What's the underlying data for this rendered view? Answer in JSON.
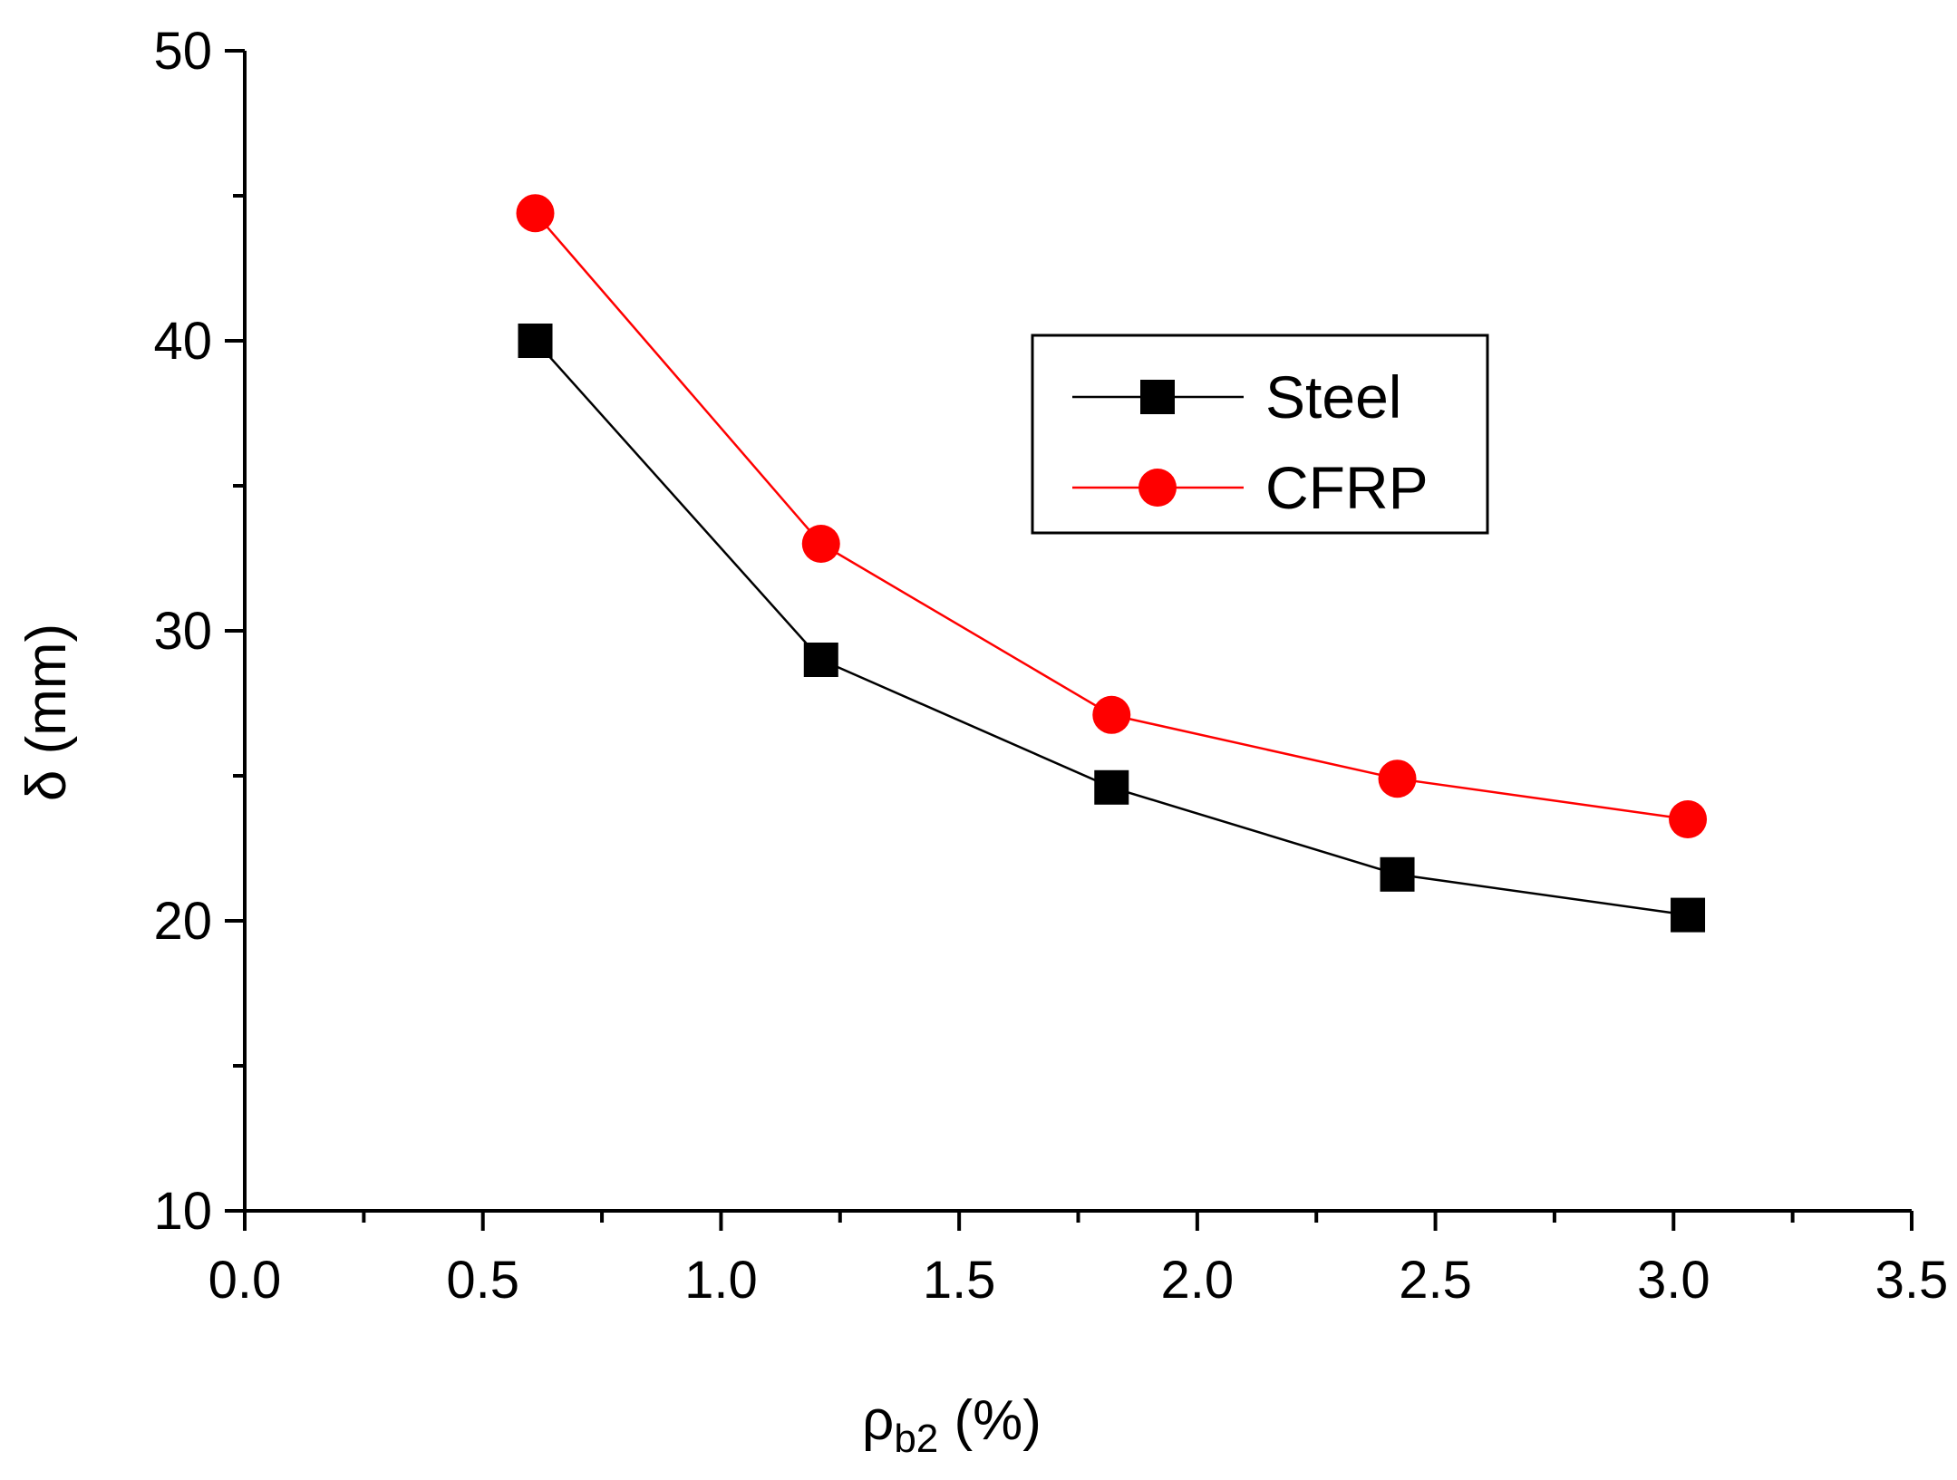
{
  "chart_data": {
    "type": "line",
    "title": "",
    "xlabel": "ρ",
    "xlabel_sub": "b2",
    "xlabel_unit": " (%)",
    "ylabel": "δ (mm)",
    "xlim": [
      0.0,
      3.5
    ],
    "ylim": [
      10,
      50
    ],
    "xticks": [
      0.0,
      0.5,
      1.0,
      1.5,
      2.0,
      2.5,
      3.0,
      3.5
    ],
    "xtick_labels": [
      "0.0",
      "0.5",
      "1.0",
      "1.5",
      "2.0",
      "2.5",
      "3.0",
      "3.5"
    ],
    "yticks": [
      10,
      20,
      30,
      40,
      50
    ],
    "ytick_labels": [
      "10",
      "20",
      "30",
      "40",
      "50"
    ],
    "grid": false,
    "legend_position": "top-right",
    "series": [
      {
        "name": "Steel",
        "color": "#000000",
        "marker": "square",
        "x": [
          0.61,
          1.21,
          1.82,
          2.42,
          3.03
        ],
        "values": [
          40.0,
          29.0,
          24.6,
          21.6,
          20.2
        ]
      },
      {
        "name": "CFRP",
        "color": "#ff0000",
        "marker": "circle",
        "x": [
          0.61,
          1.21,
          1.82,
          2.42,
          3.03
        ],
        "values": [
          44.4,
          33.0,
          27.1,
          24.9,
          23.5
        ]
      }
    ]
  }
}
